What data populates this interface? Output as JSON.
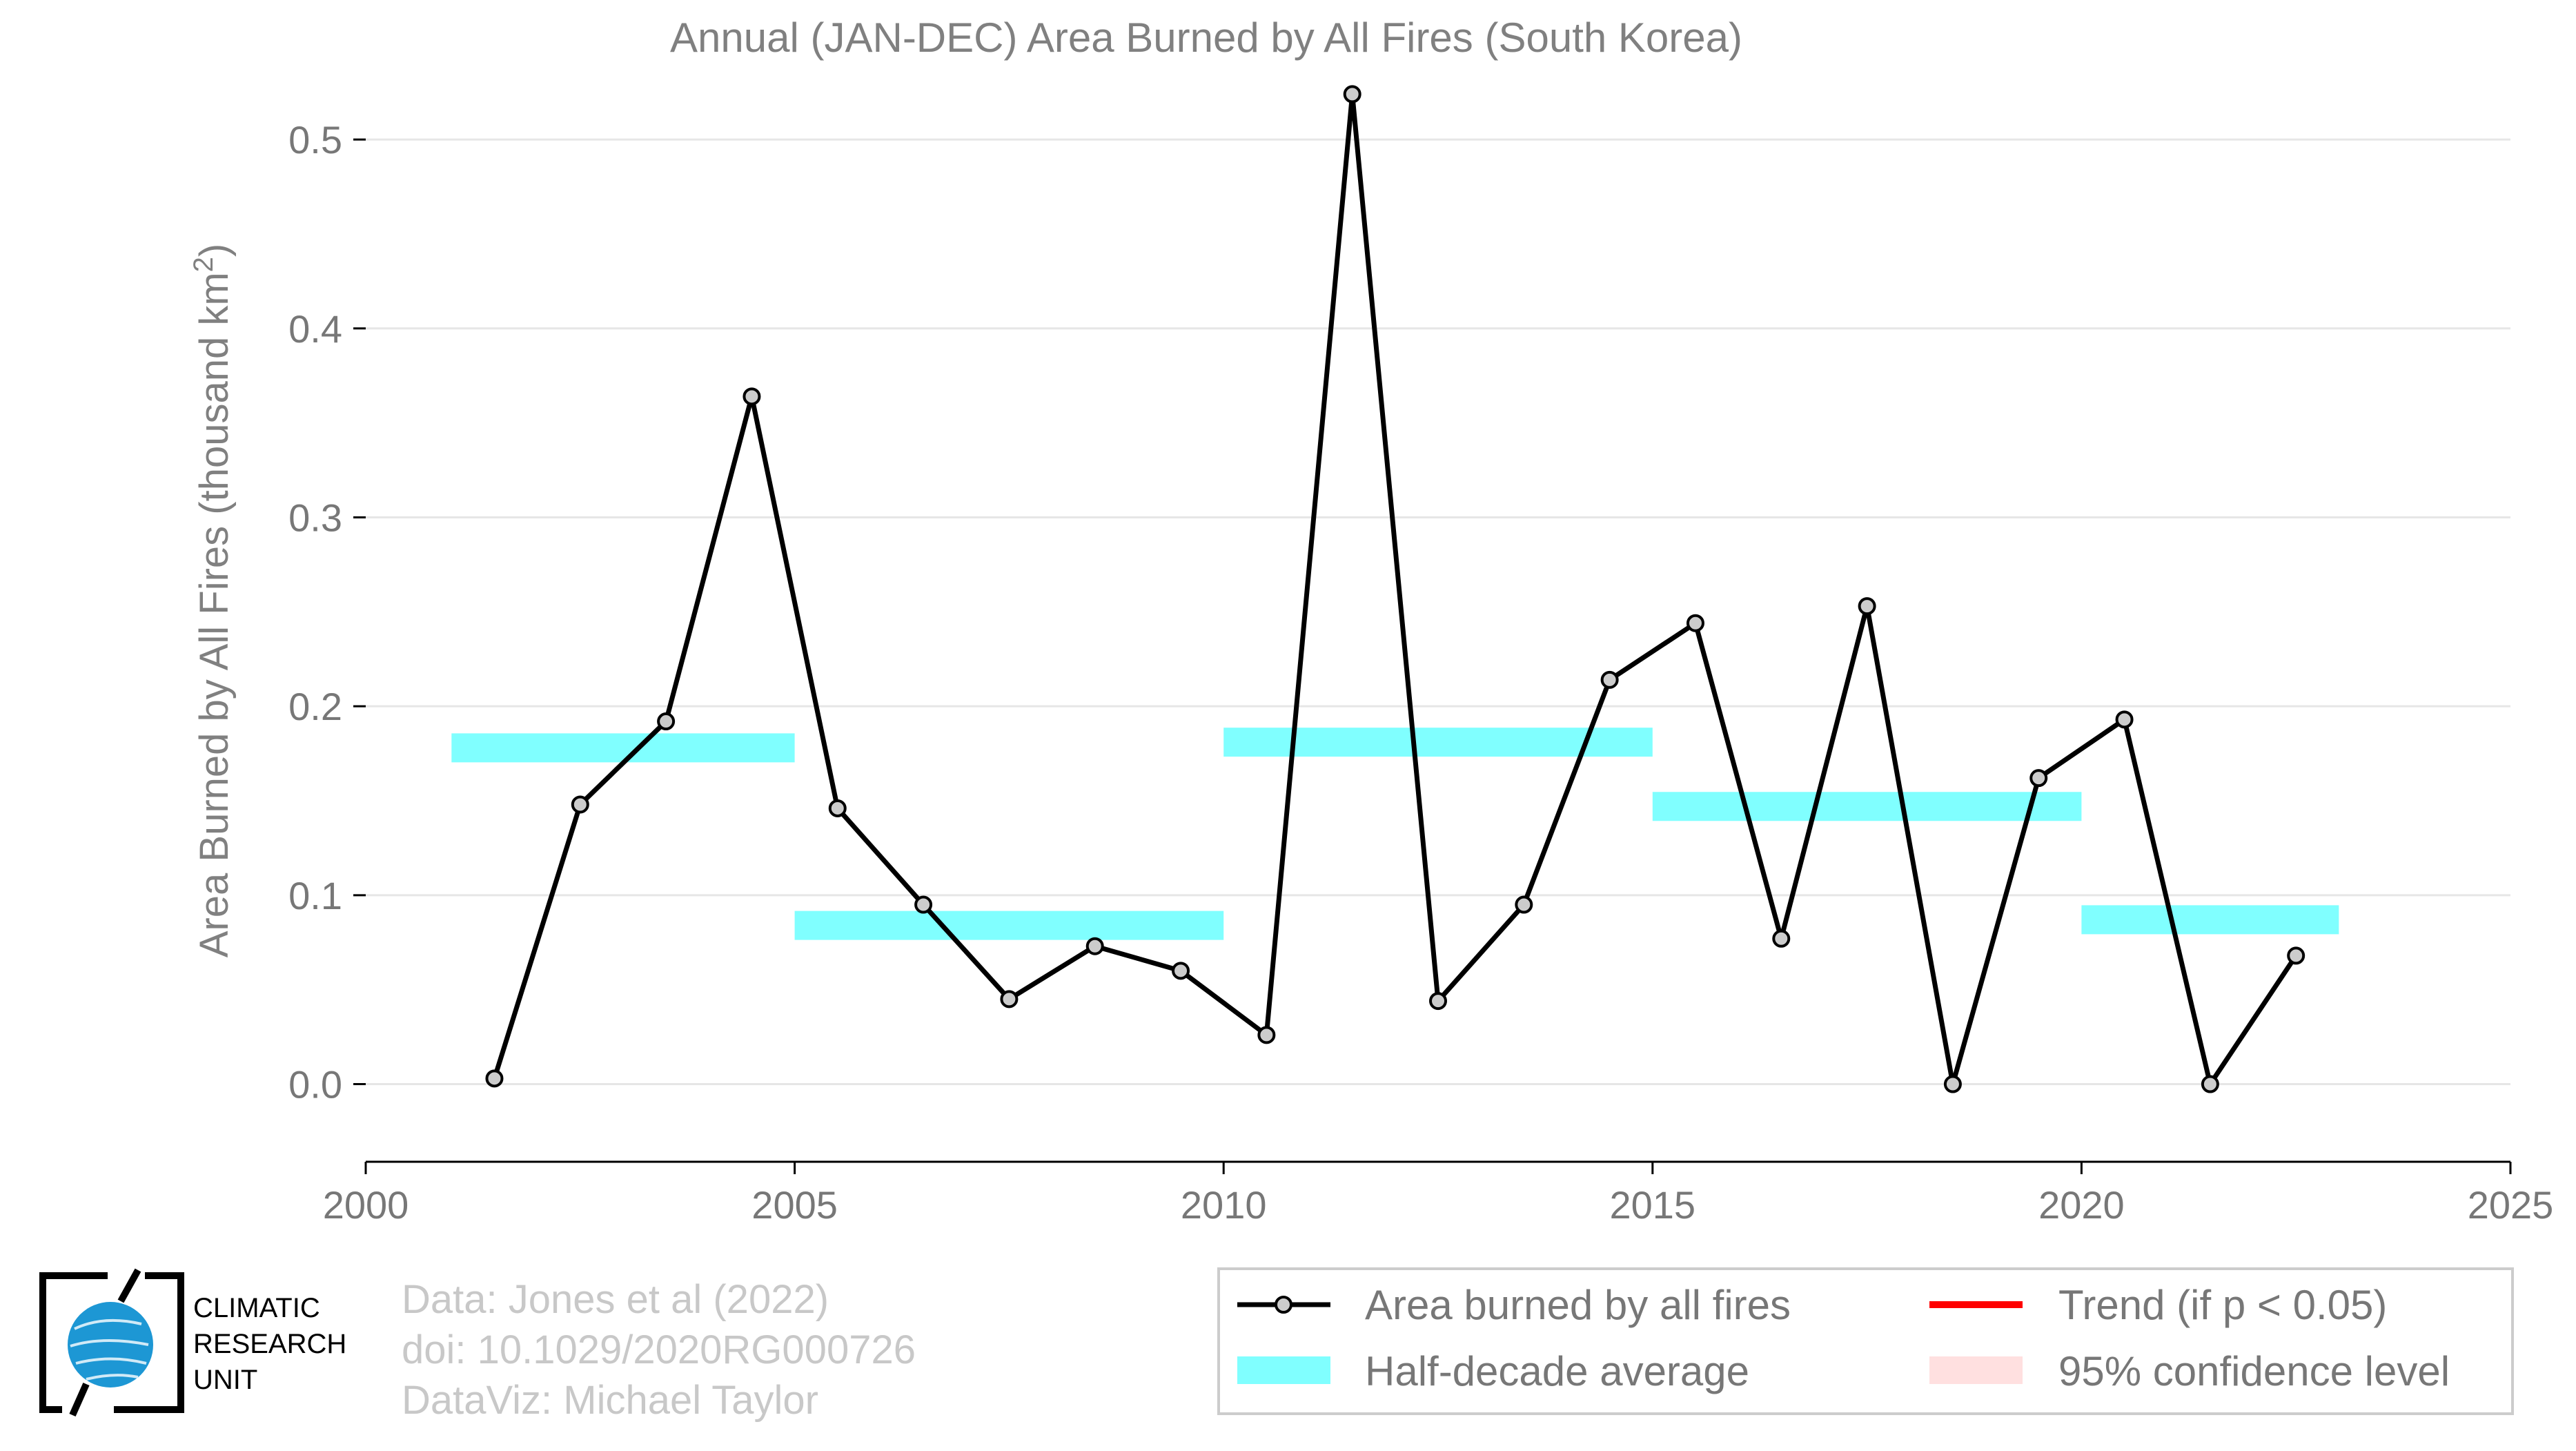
{
  "chart_data": {
    "type": "line",
    "title": "Annual (JAN-DEC) Area Burned by All Fires (South Korea)",
    "ylabel": "Area Burned by All Fires (thousand km",
    "ylabel_sup": "2",
    "ylabel_close": ")",
    "xlim": [
      2000,
      2025
    ],
    "ylim": [
      -0.04,
      0.53
    ],
    "x_ticks": [
      2000,
      2005,
      2010,
      2015,
      2020,
      2025
    ],
    "x_tick_labels": [
      "2000",
      "2005",
      "2010",
      "2015",
      "2020",
      "2025"
    ],
    "y_ticks": [
      0.0,
      0.1,
      0.2,
      0.3,
      0.4,
      0.5
    ],
    "y_tick_labels": [
      "0.0",
      "0.1",
      "0.2",
      "0.3",
      "0.4",
      "0.5"
    ],
    "grid": "horizontal",
    "series": [
      {
        "name": "Area burned by all fires",
        "color": "#000000",
        "marker_fill": "#cccccc",
        "x": [
          2001.5,
          2002.5,
          2003.5,
          2004.5,
          2005.5,
          2006.5,
          2007.5,
          2008.5,
          2009.5,
          2010.5,
          2011.5,
          2012.5,
          2013.5,
          2014.5,
          2015.5,
          2016.5,
          2017.5,
          2018.5,
          2019.5,
          2020.5,
          2021.5,
          2022.5
        ],
        "values": [
          0.003,
          0.148,
          0.192,
          0.364,
          0.146,
          0.095,
          0.045,
          0.073,
          0.06,
          0.026,
          0.524,
          0.044,
          0.095,
          0.214,
          0.244,
          0.077,
          0.253,
          0.0,
          0.162,
          0.193,
          0.0,
          0.068
        ]
      },
      {
        "name": "Half-decade average",
        "color": "#80ffff",
        "segments": [
          {
            "x_start": 2001,
            "x_end": 2005,
            "value": 0.178
          },
          {
            "x_start": 2005,
            "x_end": 2010,
            "value": 0.084
          },
          {
            "x_start": 2010,
            "x_end": 2015,
            "value": 0.181
          },
          {
            "x_start": 2015,
            "x_end": 2020,
            "value": 0.147
          },
          {
            "x_start": 2020,
            "x_end": 2023,
            "value": 0.087
          }
        ]
      }
    ],
    "legend": {
      "placement": "bottom-right",
      "entries": [
        {
          "label": "Area burned by all fires",
          "kind": "line-marker",
          "color": "#000000"
        },
        {
          "label": "Trend (if p < 0.05)",
          "kind": "line",
          "color": "#ff0000"
        },
        {
          "label": "Half-decade average",
          "kind": "patch",
          "color": "#80ffff"
        },
        {
          "label": "95% confidence level",
          "kind": "patch",
          "color": "#ffe0e0"
        }
      ]
    }
  },
  "footer": {
    "cru_logo_lines": [
      "CLIMATIC",
      "RESEARCH",
      "UNIT"
    ],
    "credit_lines": [
      "Data: Jones et al (2022)",
      "doi: 10.1029/2020RG000726",
      "DataViz: Michael Taylor"
    ]
  }
}
